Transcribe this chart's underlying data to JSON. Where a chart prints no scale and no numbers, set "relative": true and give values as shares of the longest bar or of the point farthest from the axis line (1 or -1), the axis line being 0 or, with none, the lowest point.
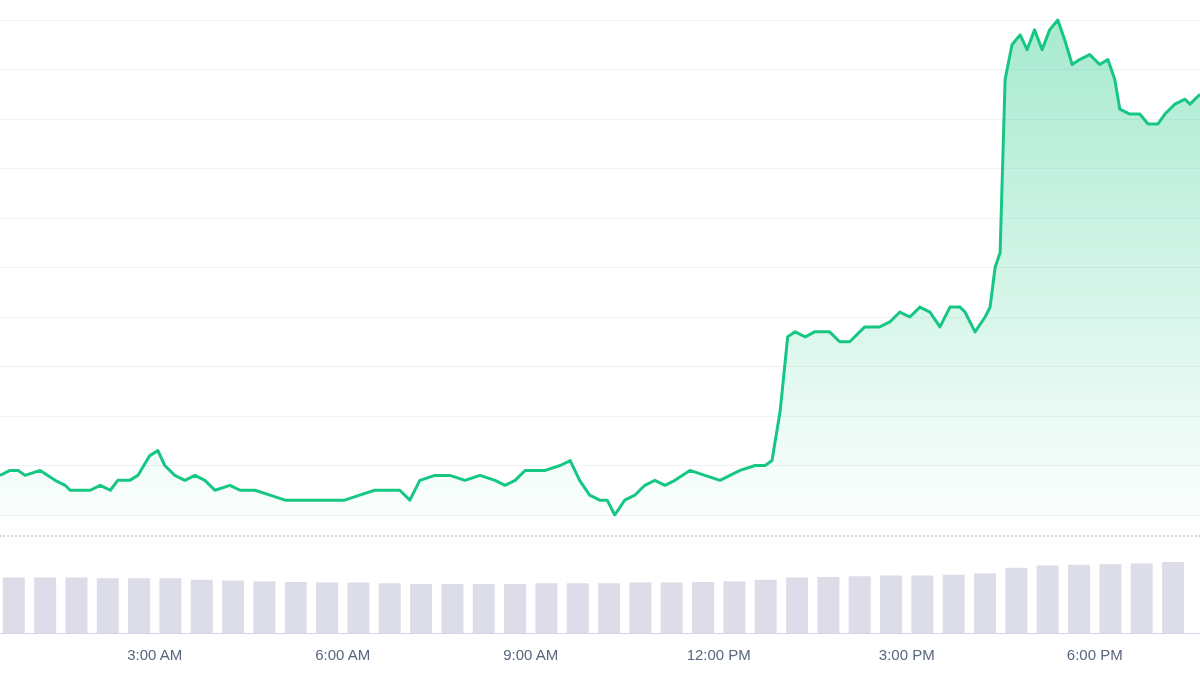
{
  "chart_data": [
    {
      "type": "area",
      "relative": true,
      "grid": "y",
      "xlim": [
        0.53,
        19.68
      ],
      "marker": "none",
      "series": [
        {
          "color": "#16c784",
          "x": [
            0.53,
            0.69,
            0.82,
            0.93,
            1.17,
            1.41,
            1.57,
            1.65,
            1.81,
            1.97,
            2.13,
            2.29,
            2.41,
            2.6,
            2.73,
            2.92,
            3.05,
            3.16,
            3.32,
            3.48,
            3.64,
            3.8,
            3.96,
            4.2,
            4.36,
            4.6,
            4.84,
            5.08,
            5.32,
            5.56,
            5.8,
            6.03,
            6.27,
            6.51,
            6.75,
            6.91,
            7.07,
            7.23,
            7.47,
            7.71,
            7.95,
            8.19,
            8.43,
            8.59,
            8.75,
            8.91,
            9.23,
            9.47,
            9.63,
            9.78,
            9.94,
            10.1,
            10.22,
            10.34,
            10.5,
            10.66,
            10.82,
            10.98,
            11.14,
            11.3,
            11.54,
            11.78,
            12.02,
            12.18,
            12.34,
            12.58,
            12.74,
            12.85,
            12.98,
            13.1,
            13.22,
            13.38,
            13.53,
            13.77,
            13.93,
            14.09,
            14.33,
            14.57,
            14.73,
            14.89,
            15.05,
            15.21,
            15.37,
            15.53,
            15.69,
            15.85,
            15.93,
            16.09,
            16.25,
            16.33,
            16.41,
            16.49,
            16.57,
            16.68,
            16.81,
            16.92,
            17.04,
            17.16,
            17.28,
            17.41,
            17.52,
            17.64,
            17.76,
            17.92,
            18.08,
            18.21,
            18.32,
            18.4,
            18.56,
            18.72,
            18.85,
            19.01,
            19.12,
            19.28,
            19.44,
            19.52,
            19.68
          ],
          "values": [
            0.08,
            0.09,
            0.09,
            0.08,
            0.09,
            0.07,
            0.06,
            0.05,
            0.05,
            0.05,
            0.06,
            0.05,
            0.07,
            0.07,
            0.08,
            0.12,
            0.13,
            0.1,
            0.08,
            0.07,
            0.08,
            0.07,
            0.05,
            0.06,
            0.05,
            0.05,
            0.04,
            0.03,
            0.03,
            0.03,
            0.03,
            0.03,
            0.04,
            0.05,
            0.05,
            0.05,
            0.03,
            0.07,
            0.08,
            0.08,
            0.07,
            0.08,
            0.07,
            0.06,
            0.07,
            0.09,
            0.09,
            0.1,
            0.11,
            0.07,
            0.04,
            0.03,
            0.03,
            0,
            0.03,
            0.04,
            0.06,
            0.07,
            0.06,
            0.07,
            0.09,
            0.08,
            0.07,
            0.08,
            0.09,
            0.1,
            0.1,
            0.11,
            0.21,
            0.36,
            0.37,
            0.36,
            0.37,
            0.37,
            0.35,
            0.35,
            0.38,
            0.38,
            0.39,
            0.41,
            0.4,
            0.42,
            0.41,
            0.38,
            0.42,
            0.42,
            0.41,
            0.37,
            0.4,
            0.42,
            0.5,
            0.53,
            0.88,
            0.95,
            0.97,
            0.94,
            0.98,
            0.94,
            0.98,
            1,
            0.96,
            0.91,
            0.92,
            0.93,
            0.91,
            0.92,
            0.88,
            0.82,
            0.81,
            0.81,
            0.79,
            0.79,
            0.81,
            0.83,
            0.84,
            0.83,
            0.85
          ]
        }
      ]
    },
    {
      "type": "bar",
      "relative": true,
      "grid": false,
      "color": "#dcdde8",
      "xlim": [
        0.53,
        19.68
      ],
      "xticks": [
        {
          "value": 3,
          "label": "3:00 AM"
        },
        {
          "value": 6,
          "label": "6:00 AM"
        },
        {
          "value": 9,
          "label": "9:00 AM"
        },
        {
          "value": 12,
          "label": "12:00 PM"
        },
        {
          "value": 15,
          "label": "3:00 PM"
        },
        {
          "value": 18,
          "label": "6:00 PM"
        }
      ],
      "x": [
        0.75,
        1.25,
        1.75,
        2.25,
        2.75,
        3.25,
        3.75,
        4.25,
        4.75,
        5.25,
        5.75,
        6.25,
        6.75,
        7.25,
        7.75,
        8.25,
        8.75,
        9.25,
        9.75,
        10.25,
        10.75,
        11.25,
        11.75,
        12.25,
        12.75,
        13.25,
        13.75,
        14.25,
        14.75,
        15.25,
        15.75,
        16.25,
        16.75,
        17.25,
        17.75,
        18.25,
        18.75,
        19.25
      ],
      "values": [
        0.78,
        0.78,
        0.78,
        0.77,
        0.77,
        0.77,
        0.75,
        0.74,
        0.73,
        0.72,
        0.71,
        0.71,
        0.7,
        0.69,
        0.69,
        0.69,
        0.69,
        0.7,
        0.7,
        0.7,
        0.71,
        0.71,
        0.72,
        0.73,
        0.75,
        0.78,
        0.79,
        0.8,
        0.81,
        0.81,
        0.82,
        0.84,
        0.92,
        0.95,
        0.96,
        0.97,
        0.98,
        1
      ]
    }
  ]
}
